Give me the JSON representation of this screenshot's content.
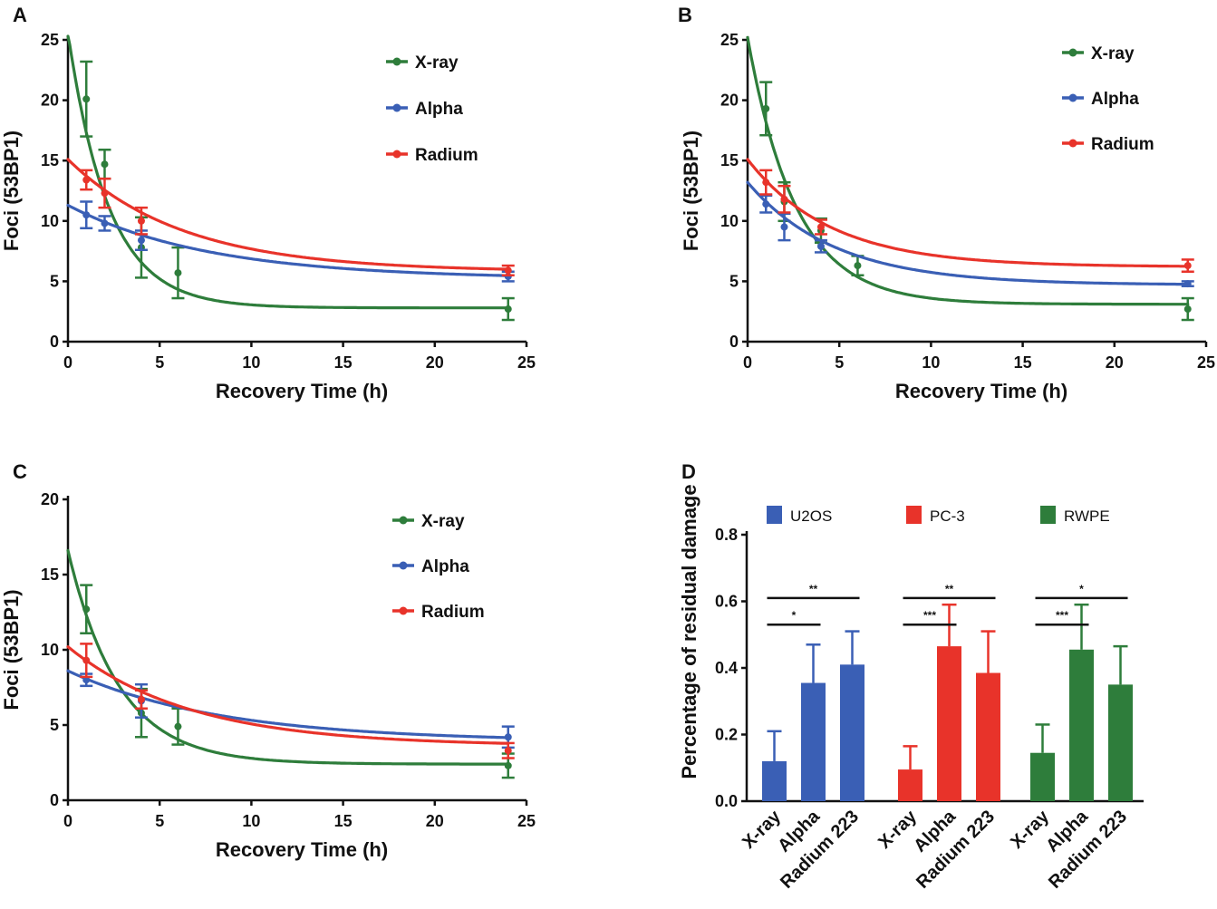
{
  "chart_data": [
    {
      "panel": "A",
      "type": "line",
      "xlabel": "Recovery Time (h)",
      "ylabel": "Foci (53BP1)",
      "xlim": [
        0,
        25
      ],
      "ylim": [
        0,
        25
      ],
      "xticks": [
        "0",
        "5",
        "10",
        "15",
        "20",
        "25"
      ],
      "yticks": [
        "0",
        "5",
        "10",
        "15",
        "20",
        "25"
      ],
      "legend": [
        "X-ray",
        "Alpha",
        "Radium"
      ],
      "series": [
        {
          "name": "X-ray",
          "color": "#2e7d3b",
          "points": [
            {
              "x": 1,
              "y": 20.1,
              "err": 3.1
            },
            {
              "x": 2,
              "y": 14.7,
              "err": 1.2
            },
            {
              "x": 4,
              "y": 7.8,
              "err": 2.5
            },
            {
              "x": 6,
              "y": 5.7,
              "err": 2.1
            },
            {
              "x": 24,
              "y": 2.7,
              "err": 0.9
            }
          ],
          "fit": {
            "plateau": 2.8,
            "y0": 25.6,
            "k": 0.45
          }
        },
        {
          "name": "Alpha",
          "color": "#3a5fb5",
          "points": [
            {
              "x": 1,
              "y": 10.5,
              "err": 1.1
            },
            {
              "x": 2,
              "y": 9.8,
              "err": 0.6
            },
            {
              "x": 4,
              "y": 8.4,
              "err": 0.8
            },
            {
              "x": 24,
              "y": 5.4,
              "err": 0.4
            }
          ],
          "fit": {
            "plateau": 5.2,
            "y0": 11.3,
            "k": 0.13
          }
        },
        {
          "name": "Radium",
          "color": "#e8332a",
          "points": [
            {
              "x": 1,
              "y": 13.4,
              "err": 0.8
            },
            {
              "x": 2,
              "y": 12.3,
              "err": 1.2
            },
            {
              "x": 4,
              "y": 10.0,
              "err": 1.1
            },
            {
              "x": 24,
              "y": 5.9,
              "err": 0.4
            }
          ],
          "fit": {
            "plateau": 5.8,
            "y0": 15.1,
            "k": 0.16
          }
        }
      ]
    },
    {
      "panel": "B",
      "type": "line",
      "xlabel": "Recovery Time (h)",
      "ylabel": "Foci (53BP1)",
      "xlim": [
        0,
        25
      ],
      "ylim": [
        0,
        25
      ],
      "xticks": [
        "0",
        "5",
        "10",
        "15",
        "20",
        "25"
      ],
      "yticks": [
        "0",
        "5",
        "10",
        "15",
        "20",
        "25"
      ],
      "legend": [
        "X-ray",
        "Alpha",
        "Radium"
      ],
      "series": [
        {
          "name": "X-ray",
          "color": "#2e7d3b",
          "points": [
            {
              "x": 1,
              "y": 19.3,
              "err": 2.2
            },
            {
              "x": 2,
              "y": 11.6,
              "err": 1.6
            },
            {
              "x": 4,
              "y": 9.2,
              "err": 1.0
            },
            {
              "x": 6,
              "y": 6.3,
              "err": 0.8
            },
            {
              "x": 24,
              "y": 2.7,
              "err": 0.9
            }
          ],
          "fit": {
            "plateau": 3.1,
            "y0": 25.2,
            "k": 0.38
          }
        },
        {
          "name": "Alpha",
          "color": "#3a5fb5",
          "points": [
            {
              "x": 1,
              "y": 11.4,
              "err": 0.7
            },
            {
              "x": 2,
              "y": 9.5,
              "err": 1.1
            },
            {
              "x": 4,
              "y": 7.9,
              "err": 0.5
            },
            {
              "x": 24,
              "y": 4.8,
              "err": 0.2
            }
          ],
          "fit": {
            "plateau": 4.7,
            "y0": 13.2,
            "k": 0.21
          }
        },
        {
          "name": "Radium",
          "color": "#e8332a",
          "points": [
            {
              "x": 1,
              "y": 13.2,
              "err": 1.0
            },
            {
              "x": 2,
              "y": 11.8,
              "err": 1.1
            },
            {
              "x": 4,
              "y": 9.5,
              "err": 0.6
            },
            {
              "x": 24,
              "y": 6.3,
              "err": 0.5
            }
          ],
          "fit": {
            "plateau": 6.2,
            "y0": 15.1,
            "k": 0.22
          }
        }
      ]
    },
    {
      "panel": "C",
      "type": "line",
      "xlabel": "Recovery Time (h)",
      "ylabel": "Foci (53BP1)",
      "xlim": [
        0,
        25
      ],
      "ylim": [
        0,
        20
      ],
      "xticks": [
        "0",
        "5",
        "10",
        "15",
        "20",
        "25"
      ],
      "yticks": [
        "0",
        "5",
        "10",
        "15",
        "20"
      ],
      "legend": [
        "X-ray",
        "Alpha",
        "Radium"
      ],
      "series": [
        {
          "name": "X-ray",
          "color": "#2e7d3b",
          "points": [
            {
              "x": 1,
              "y": 12.7,
              "err": 1.6
            },
            {
              "x": 4,
              "y": 5.8,
              "err": 1.6
            },
            {
              "x": 6,
              "y": 4.9,
              "err": 1.2
            },
            {
              "x": 24,
              "y": 2.3,
              "err": 0.8
            }
          ],
          "fit": {
            "plateau": 2.4,
            "y0": 16.6,
            "k": 0.36
          }
        },
        {
          "name": "Alpha",
          "color": "#3a5fb5",
          "points": [
            {
              "x": 1,
              "y": 8.0,
              "err": 0.4
            },
            {
              "x": 4,
              "y": 6.6,
              "err": 1.1
            },
            {
              "x": 24,
              "y": 4.2,
              "err": 0.7
            }
          ],
          "fit": {
            "plateau": 3.9,
            "y0": 8.6,
            "k": 0.12
          }
        },
        {
          "name": "Radium",
          "color": "#e8332a",
          "points": [
            {
              "x": 1,
              "y": 9.3,
              "err": 1.1
            },
            {
              "x": 4,
              "y": 6.7,
              "err": 0.6
            },
            {
              "x": 24,
              "y": 3.3,
              "err": 0.5
            }
          ],
          "fit": {
            "plateau": 3.6,
            "y0": 10.2,
            "k": 0.15
          }
        }
      ]
    },
    {
      "panel": "D",
      "type": "bar",
      "ylabel": "Percentage of residual damage",
      "ylim": [
        0,
        0.8
      ],
      "yticks": [
        "0.0",
        "0.2",
        "0.4",
        "0.6",
        "0.8"
      ],
      "categories": [
        "X-ray",
        "Alpha",
        "Radium 223"
      ],
      "groups": [
        {
          "name": "U2OS",
          "color": "#3a5fb5",
          "values": [
            0.12,
            0.355,
            0.41
          ],
          "errors": [
            0.09,
            0.115,
            0.1
          ],
          "significance": [
            {
              "from": 0,
              "to": 1,
              "label": "*"
            },
            {
              "from": 0,
              "to": 2,
              "label": "**"
            }
          ]
        },
        {
          "name": "PC-3",
          "color": "#e8332a",
          "values": [
            0.095,
            0.465,
            0.385
          ],
          "errors": [
            0.07,
            0.125,
            0.125
          ],
          "significance": [
            {
              "from": 0,
              "to": 1,
              "label": "***"
            },
            {
              "from": 0,
              "to": 2,
              "label": "**"
            }
          ]
        },
        {
          "name": "RWPE",
          "color": "#2e7d3b",
          "values": [
            0.145,
            0.455,
            0.35
          ],
          "errors": [
            0.085,
            0.135,
            0.115
          ],
          "significance": [
            {
              "from": 0,
              "to": 1,
              "label": "***"
            },
            {
              "from": 0,
              "to": 2,
              "label": "*"
            }
          ]
        }
      ]
    }
  ]
}
